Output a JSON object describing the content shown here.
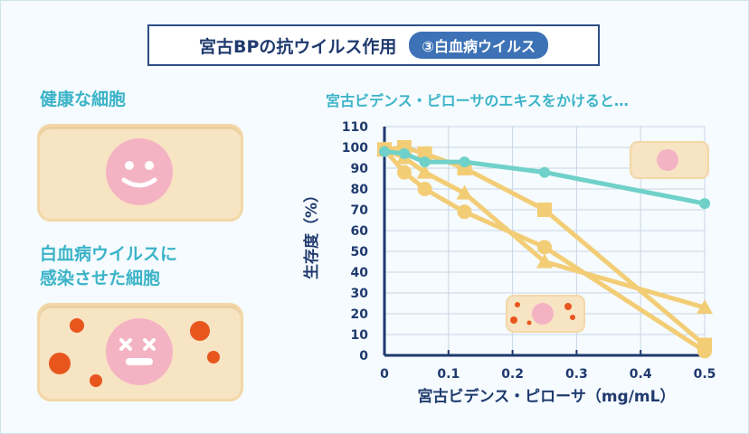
{
  "header": {
    "title": "宮古BPの抗ウイルス作用",
    "badge": "③白血病ウイルス"
  },
  "left": {
    "healthy_label": "健康な細胞",
    "infected_label_line1": "白血病ウイルスに",
    "infected_label_line2": "感染させた細胞"
  },
  "chart_data": {
    "type": "line",
    "title": "宮古ビデンス・ピローサのエキスをかけると…",
    "xlabel": "宮古ビデンス・ピローサ（mg/mL）",
    "ylabel": "生存度（%）",
    "xlim": [
      0,
      0.5
    ],
    "ylim": [
      0,
      110
    ],
    "xticks": [
      "0",
      "0.1",
      "0.2",
      "0.3",
      "0.4",
      "0.5"
    ],
    "yticks": [
      "0",
      "10",
      "20",
      "30",
      "40",
      "50",
      "60",
      "70",
      "80",
      "90",
      "100",
      "110"
    ],
    "grid": true,
    "series": [
      {
        "marker": "circle",
        "color": "#6fd1c9",
        "x": [
          0,
          0.031,
          0.063,
          0.125,
          0.25,
          0.5
        ],
        "y": [
          98,
          97,
          93,
          93,
          88,
          73
        ]
      },
      {
        "marker": "square",
        "color": "#f3cd76",
        "x": [
          0,
          0.031,
          0.063,
          0.125,
          0.25,
          0.5
        ],
        "y": [
          99,
          100,
          97,
          90,
          70,
          5
        ]
      },
      {
        "marker": "triangle",
        "color": "#f3cd76",
        "x": [
          0,
          0.031,
          0.063,
          0.125,
          0.25,
          0.5
        ],
        "y": [
          99,
          95,
          88,
          78,
          45,
          23
        ]
      },
      {
        "marker": "circle",
        "color": "#f3cd76",
        "x": [
          0,
          0.031,
          0.063,
          0.125,
          0.25,
          0.5
        ],
        "y": [
          99,
          88,
          80,
          69,
          52,
          2
        ]
      }
    ]
  }
}
